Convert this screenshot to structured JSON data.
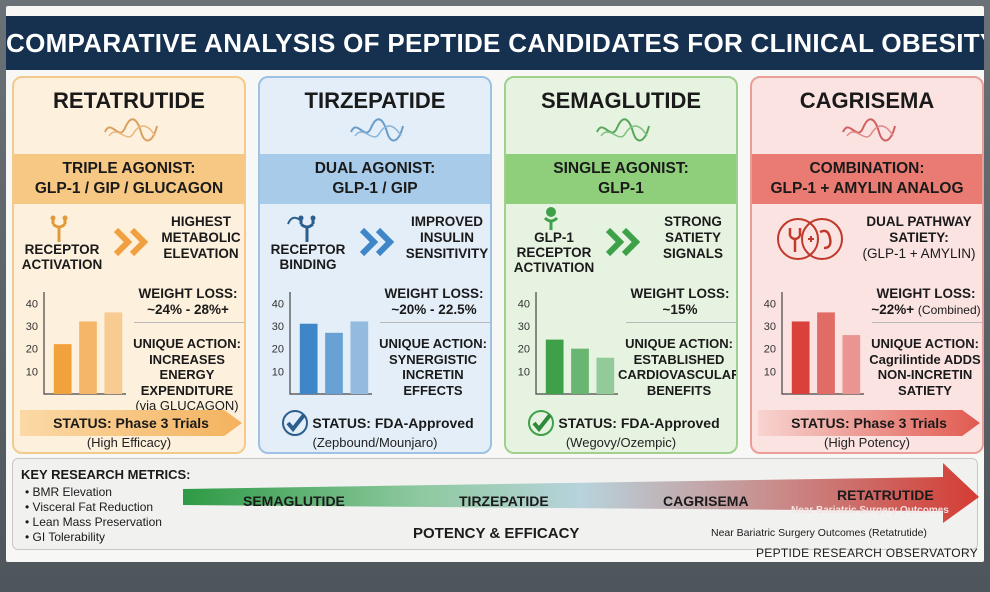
{
  "title": "COMPARATIVE ANALYSIS OF PEPTIDE CANDIDATES FOR CLINICAL OBESITY",
  "colors": {
    "retatrutide": "#f2a23c",
    "tirzepatide": "#3f86c8",
    "semaglutide": "#3ea14a",
    "cagrisema": "#d9413a",
    "title_bar": "#16314f"
  },
  "cards": [
    {
      "name": "RETATRUTIDE",
      "mechanism": [
        "TRIPLE AGONIST:",
        "GLP-1 / GIP / GLUCAGON"
      ],
      "activation": [
        "RECEPTOR",
        "ACTIVATION"
      ],
      "highlight": [
        "HIGHEST",
        "METABOLIC",
        "ELEVATION"
      ],
      "weight_loss": [
        "WEIGHT LOSS:",
        "~24% - 28%+"
      ],
      "unique_action": [
        "UNIQUE ACTION:",
        "INCREASES ENERGY",
        "EXPENDITURE"
      ],
      "unique_action_note": "(via GLUCAGON)",
      "status": "STATUS: Phase 3 Trials",
      "status_sub": "(High Efficacy)",
      "icon": "receptor-icon"
    },
    {
      "name": "TIRZEPATIDE",
      "mechanism": [
        "DUAL AGONIST:",
        "GLP-1 / GIP"
      ],
      "activation": [
        "RECEPTOR",
        "BINDING"
      ],
      "highlight": [
        "IMPROVED",
        "INSULIN",
        "SENSITIVITY"
      ],
      "weight_loss": [
        "WEIGHT LOSS:",
        "~20% - 22.5%"
      ],
      "unique_action": [
        "UNIQUE ACTION:",
        "SYNERGISTIC",
        "INCRETIN",
        "EFFECTS"
      ],
      "unique_action_note": "",
      "status": "STATUS: FDA-Approved",
      "status_sub": "(Zepbound/Mounjaro)",
      "icon": "receptor-binding-icon"
    },
    {
      "name": "SEMAGLUTIDE",
      "mechanism": [
        "SINGLE AGONIST:",
        "GLP-1"
      ],
      "activation": [
        "GLP-1",
        "RECEPTOR",
        "ACTIVATION"
      ],
      "highlight": [
        "STRONG",
        "SATIETY",
        "SIGNALS"
      ],
      "weight_loss": [
        "WEIGHT LOSS:",
        "~15%"
      ],
      "unique_action": [
        "UNIQUE ACTION:",
        "ESTABLISHED",
        "CARDIOVASCULAR",
        "BENEFITS"
      ],
      "unique_action_note": "",
      "status": "STATUS: FDA-Approved",
      "status_sub": "(Wegovy/Ozempic)",
      "icon": "glp1-receptor-icon"
    },
    {
      "name": "CAGRISEMA",
      "mechanism": [
        "COMBINATION:",
        "GLP-1 + AMYLIN ANALOG"
      ],
      "activation": [],
      "highlight": [
        "DUAL PATHWAY",
        "SATIETY:",
        "(GLP-1 + AMYLIN)"
      ],
      "weight_loss": [
        "WEIGHT LOSS:",
        "~22%+"
      ],
      "weight_loss_note": "(Combined)",
      "unique_action": [
        "UNIQUE ACTION:",
        "Cagrilintide ADDS",
        "NON-INCRETIN",
        "SATIETY"
      ],
      "unique_action_note": "",
      "status": "STATUS: Phase 3 Trials",
      "status_sub": "(High Potency)",
      "icon": "dual-pathway-icon"
    }
  ],
  "chart_data": [
    {
      "type": "bar",
      "title": "",
      "yticks": [
        10,
        20,
        30,
        40
      ],
      "ylim": [
        0,
        45
      ],
      "values": [
        22,
        32,
        36
      ],
      "color": "#f2a23c"
    },
    {
      "type": "bar",
      "title": "",
      "yticks": [
        10,
        20,
        30,
        40
      ],
      "ylim": [
        0,
        45
      ],
      "values": [
        31,
        27,
        32
      ],
      "color": "#3f86c8"
    },
    {
      "type": "bar",
      "title": "",
      "yticks": [
        10,
        20,
        30,
        40
      ],
      "ylim": [
        0,
        45
      ],
      "values": [
        24,
        20,
        16
      ],
      "color": "#3ea14a"
    },
    {
      "type": "bar",
      "title": "",
      "yticks": [
        10,
        20,
        30,
        40
      ],
      "ylim": [
        0,
        45
      ],
      "values": [
        32,
        36,
        26
      ],
      "color": "#d9413a"
    }
  ],
  "metrics": {
    "title": "KEY RESEARCH METRICS:",
    "items": [
      "BMR Elevation",
      "Visceral Fat Reduction",
      "Lean Mass Preservation",
      "GI Tolerability"
    ]
  },
  "scale": {
    "labels": [
      "SEMAGLUTIDE",
      "TIRZEPATIDE",
      "CAGRISEMA",
      "RETATRUTIDE"
    ],
    "near_small": "Near Bariatric Surgery Outcomes",
    "axis_label": "POTENCY & EFFICACY",
    "note": "Near Bariatric Surgery Outcomes (Retatrutide)"
  },
  "footer": "PEPTIDE RESEARCH OBSERVATORY"
}
